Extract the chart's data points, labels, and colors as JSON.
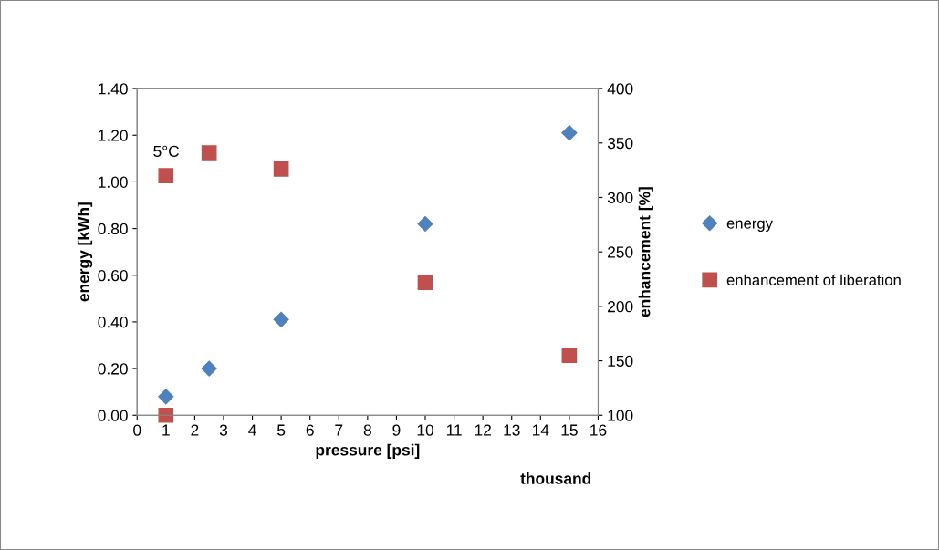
{
  "chart_data": {
    "type": "scatter",
    "xlabel": "pressure [psi]",
    "ylabel": "energy [kWh]",
    "y2label": "enhancement [%]",
    "xlim": [
      0,
      16
    ],
    "xticks": [
      0,
      1,
      2,
      3,
      4,
      5,
      6,
      7,
      8,
      9,
      10,
      11,
      12,
      13,
      14,
      15,
      16
    ],
    "ylim": [
      0,
      1.4
    ],
    "yticks": [
      {
        "value": 0,
        "label": "0.00"
      },
      {
        "value": 0.2,
        "label": "0.20"
      },
      {
        "value": 0.4,
        "label": "0.40"
      },
      {
        "value": 0.6,
        "label": "0.60"
      },
      {
        "value": 0.8,
        "label": "0.80"
      },
      {
        "value": 1.0,
        "label": "1.00"
      },
      {
        "value": 1.2,
        "label": "1.20"
      },
      {
        "value": 1.4,
        "label": "1.40"
      }
    ],
    "y2lim": [
      100,
      400
    ],
    "y2ticks": [
      100,
      150,
      200,
      250,
      300,
      350,
      400
    ],
    "series": [
      {
        "name": "energy",
        "color": "#4f81bd",
        "marker": "diamond",
        "x": [
          1,
          2.5,
          5,
          10,
          15
        ],
        "values": [
          0.08,
          0.2,
          0.41,
          0.82,
          1.21
        ]
      },
      {
        "name": "enhancement of liberation",
        "color": "#c0504d",
        "marker": "square",
        "axis": "y2",
        "x": [
          1,
          1,
          2.5,
          5,
          10,
          15
        ],
        "values": [
          100,
          320,
          341,
          326,
          222,
          155
        ]
      }
    ],
    "annotations": [
      "5°C",
      "thousand"
    ],
    "legend": "right",
    "grid": false
  }
}
